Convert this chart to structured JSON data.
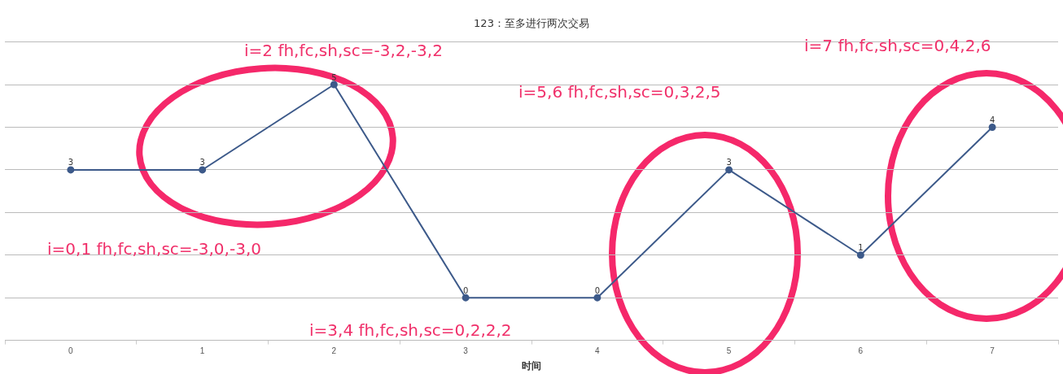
{
  "chart_data": {
    "type": "line",
    "title": "123：至多进行两次交易",
    "xlabel": "时间",
    "categories": [
      "0",
      "1",
      "2",
      "3",
      "4",
      "5",
      "6",
      "7"
    ],
    "series": [
      {
        "color": "#3d5a8a",
        "values": [
          3,
          3,
          5,
          0,
          0,
          3,
          1,
          4
        ]
      }
    ],
    "ylim": [
      -1,
      6
    ],
    "yticks": [
      {
        "value": -1,
        "label": null
      },
      {
        "value": 0,
        "label": null
      },
      {
        "value": 1,
        "label": null
      },
      {
        "value": 2,
        "label": null
      },
      {
        "value": 3,
        "label": null
      },
      {
        "value": 4,
        "label": null
      },
      {
        "value": 5,
        "label": null
      },
      {
        "value": 6,
        "label": null
      }
    ],
    "tick_labels": "x",
    "grid": "y",
    "legend": false,
    "marker": "circle",
    "line_style": "solid",
    "data_labels": true,
    "annotations": [
      "i=2 fh,fc,sh,sc=-3,2,-3,2",
      "i=5,6 fh,fc,sh,sc=0,3,2,5",
      "i=7 fh,fc,sh,sc=0,4,2,6",
      "i=0,1 fh,fc,sh,sc=-3,0,-3,0",
      "i=3,4 fh,fc,sh,sc=0,2,2,2"
    ]
  }
}
